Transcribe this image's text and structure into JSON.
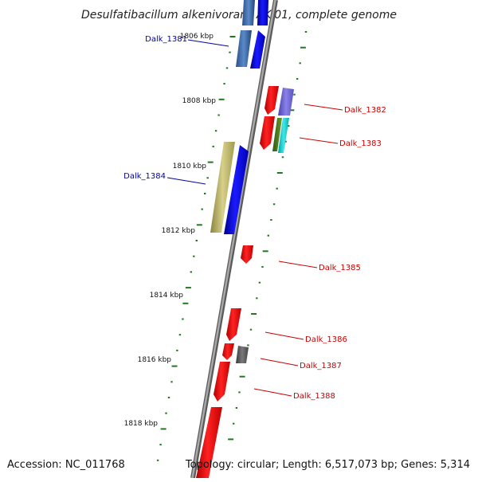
{
  "title": "Desulfatibacillum alkenivorans AK-01, complete genome",
  "footer": {
    "accession": "Accession: NC_011768",
    "topology": "Topology: circular; Length: 6,517,073 bp; Genes: 5,314"
  },
  "kbp_labels": [
    "1806 kbp",
    "1808 kbp",
    "1810 kbp",
    "1812 kbp",
    "1814 kbp",
    "1816 kbp",
    "1818 kbp"
  ],
  "colors": {
    "forward_label": "#0000aa",
    "reverse_label": "#cc0000",
    "backbone": "#8a8a8a",
    "tick": "#1f7a1f"
  },
  "genes": [
    {
      "name": "Dalk_1381",
      "strand": "forward"
    },
    {
      "name": "Dalk_1382",
      "strand": "reverse"
    },
    {
      "name": "Dalk_1383",
      "strand": "reverse"
    },
    {
      "name": "Dalk_1384",
      "strand": "forward"
    },
    {
      "name": "Dalk_1385",
      "strand": "reverse"
    },
    {
      "name": "Dalk_1386",
      "strand": "reverse"
    },
    {
      "name": "Dalk_1387",
      "strand": "reverse"
    },
    {
      "name": "Dalk_1388",
      "strand": "reverse"
    }
  ]
}
